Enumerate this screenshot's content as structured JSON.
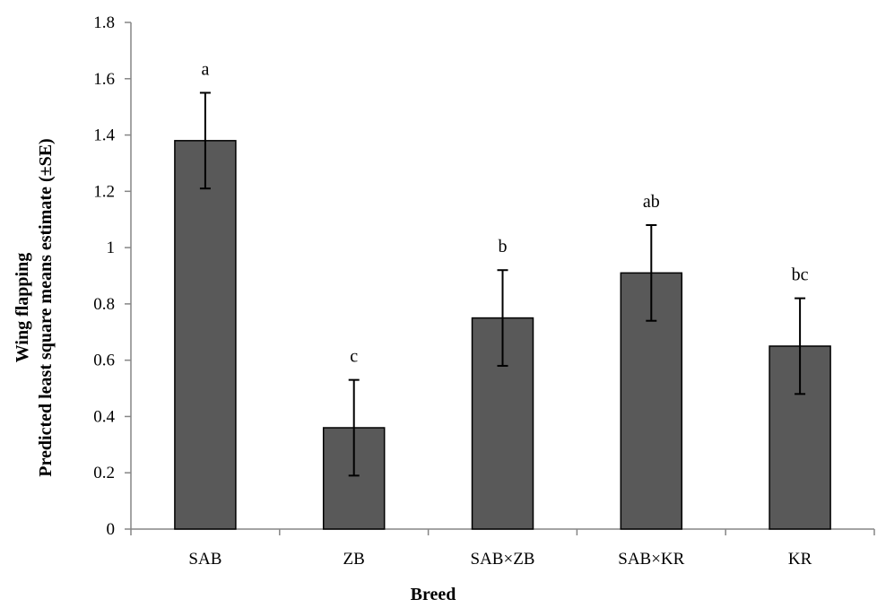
{
  "chart_data": {
    "type": "bar",
    "title": "",
    "xlabel": "Breed",
    "ylabel": [
      "Wing flapping",
      "Predicted least square means estimate (±SE)"
    ],
    "categories": [
      "SAB",
      "ZB",
      "SAB×ZB",
      "SAB×KR",
      "KR"
    ],
    "values": [
      1.38,
      0.36,
      0.75,
      0.91,
      0.65
    ],
    "errors": [
      0.17,
      0.17,
      0.17,
      0.17,
      0.17
    ],
    "significance_labels": [
      "a",
      "c",
      "b",
      "ab",
      "bc"
    ],
    "ylim": [
      0,
      1.8
    ],
    "yticks": [
      0,
      0.2,
      0.4,
      0.6,
      0.8,
      1,
      1.2,
      1.4,
      1.6,
      1.8
    ],
    "ytick_labels": [
      "0",
      "0.2",
      "0.4",
      "0.6",
      "0.8",
      "1",
      "1.2",
      "1.4",
      "1.6",
      "1.8"
    ],
    "grid": false,
    "legend": "none",
    "colors": {
      "bar_fill": "#595959",
      "bar_stroke": "#000000",
      "axis": "#868686",
      "error_bar": "#000000"
    }
  }
}
